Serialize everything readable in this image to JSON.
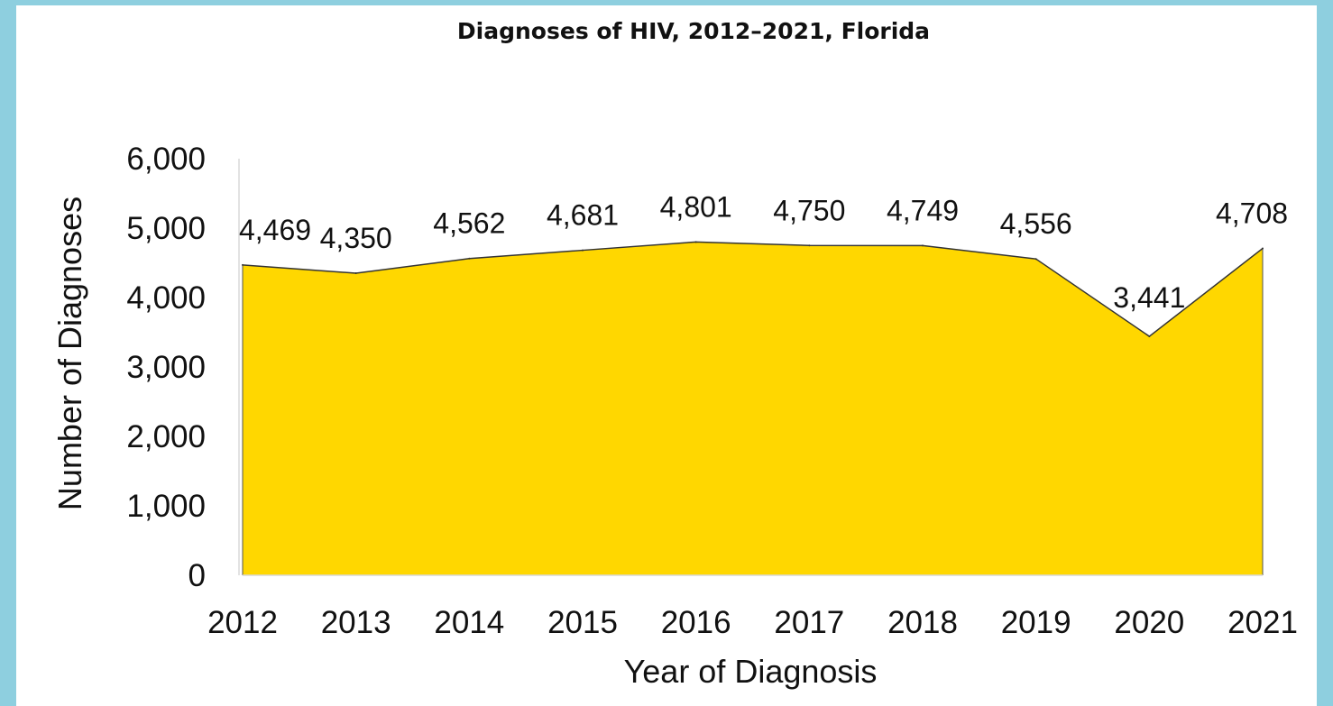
{
  "chart_data": {
    "type": "area",
    "title": "Diagnoses of HIV, 2012–2021, Florida",
    "xlabel": "Year of Diagnosis",
    "ylabel": "Number of Diagnoses",
    "categories": [
      "2012",
      "2013",
      "2014",
      "2015",
      "2016",
      "2017",
      "2018",
      "2019",
      "2020",
      "2021"
    ],
    "series": [
      {
        "values": [
          4469,
          4350,
          4562,
          4681,
          4801,
          4750,
          4749,
          4556,
          3441,
          4708
        ],
        "data_labels": [
          "4,469",
          "4,350",
          "4,562",
          "4,681",
          "4,801",
          "4,750",
          "4,749",
          "4,556",
          "3,441",
          "4,708"
        ]
      }
    ],
    "ylim": [
      0,
      6000
    ],
    "yticks": [
      0,
      1000,
      2000,
      3000,
      4000,
      5000,
      6000
    ],
    "ytick_labels": [
      "0",
      "1,000",
      "2,000",
      "3,000",
      "4,000",
      "5,000",
      "6,000"
    ],
    "grid": false,
    "legend": "none",
    "fill_color": "#FFD700",
    "line_color": "#333333",
    "background_color": "#FFFFFF",
    "border_color": "#8ECFDF"
  }
}
